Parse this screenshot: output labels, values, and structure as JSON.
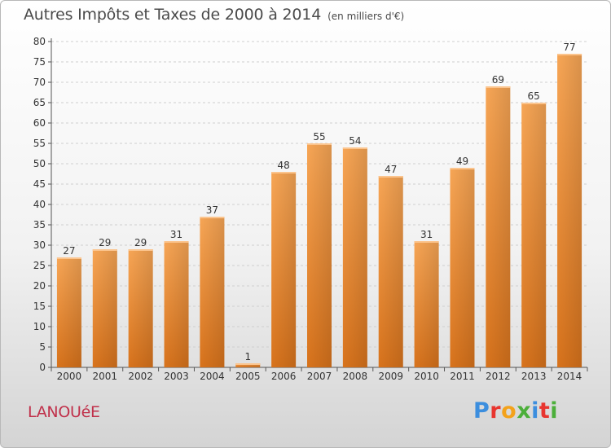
{
  "chart_data": {
    "type": "bar",
    "title": "Autres Impôts et Taxes de 2000 à 2014",
    "subtitle": "(en milliers d'€)",
    "categories": [
      "2000",
      "2001",
      "2002",
      "2003",
      "2004",
      "2005",
      "2006",
      "2007",
      "2008",
      "2009",
      "2010",
      "2011",
      "2012",
      "2013",
      "2014"
    ],
    "values": [
      27,
      29,
      29,
      31,
      37,
      1,
      48,
      55,
      54,
      47,
      31,
      49,
      69,
      65,
      77
    ],
    "ylim": [
      0,
      80
    ],
    "yticks": [
      "0",
      "5",
      "10",
      "15",
      "20",
      "25",
      "30",
      "35",
      "40",
      "45",
      "50",
      "55",
      "60",
      "65",
      "70",
      "75",
      "80"
    ],
    "grid": true,
    "bar_color": "#f0892f"
  },
  "footer": {
    "commune": "LANOUéE",
    "brand": "Proxiti"
  },
  "brand_colors": [
    "#3c8ede",
    "#e8352f",
    "#f3a21b",
    "#4caf3a",
    "#3c8ede",
    "#e8352f",
    "#4caf3a"
  ]
}
